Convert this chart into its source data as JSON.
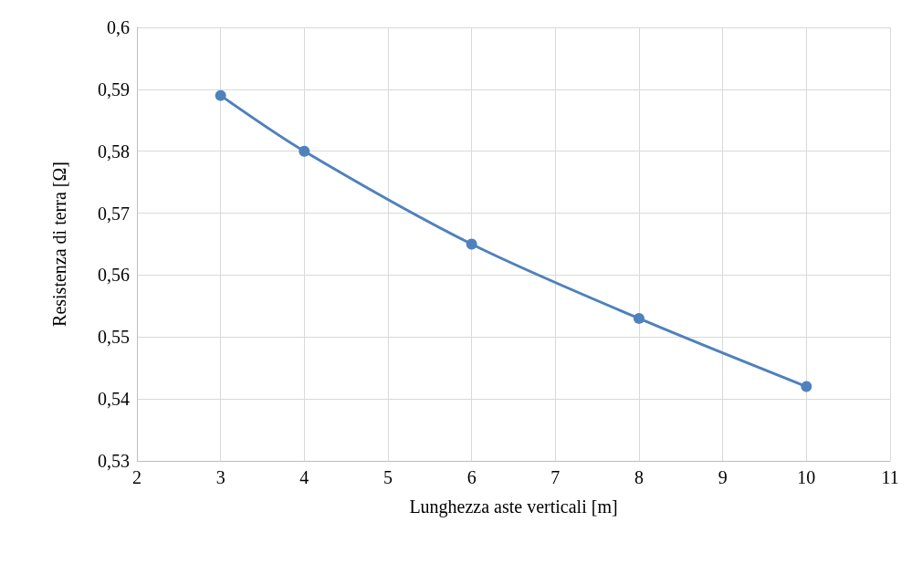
{
  "chart_data": {
    "type": "line",
    "xlabel": "Lunghezza aste verticali [m]",
    "ylabel": "Resistenza di terra [Ω]",
    "x": [
      3,
      4,
      6,
      8,
      10
    ],
    "series": [
      {
        "color": "#4f81bd",
        "values": [
          0.589,
          0.58,
          0.565,
          0.553,
          0.542
        ]
      }
    ],
    "xlim": [
      2,
      11
    ],
    "xticks": [
      2,
      3,
      4,
      5,
      6,
      7,
      8,
      9,
      10,
      11
    ],
    "ylim": [
      0.53,
      0.6
    ],
    "yticks": [
      {
        "value": 0.53,
        "label": "0,53"
      },
      {
        "value": 0.54,
        "label": "0,54"
      },
      {
        "value": 0.55,
        "label": "0,55"
      },
      {
        "value": 0.56,
        "label": "0,56"
      },
      {
        "value": 0.57,
        "label": "0,57"
      },
      {
        "value": 0.58,
        "label": "0,58"
      },
      {
        "value": 0.59,
        "label": "0,59"
      },
      {
        "value": 0.6,
        "label": "0,6"
      }
    ],
    "grid": true,
    "marker": "circle",
    "line_style": "solid"
  }
}
